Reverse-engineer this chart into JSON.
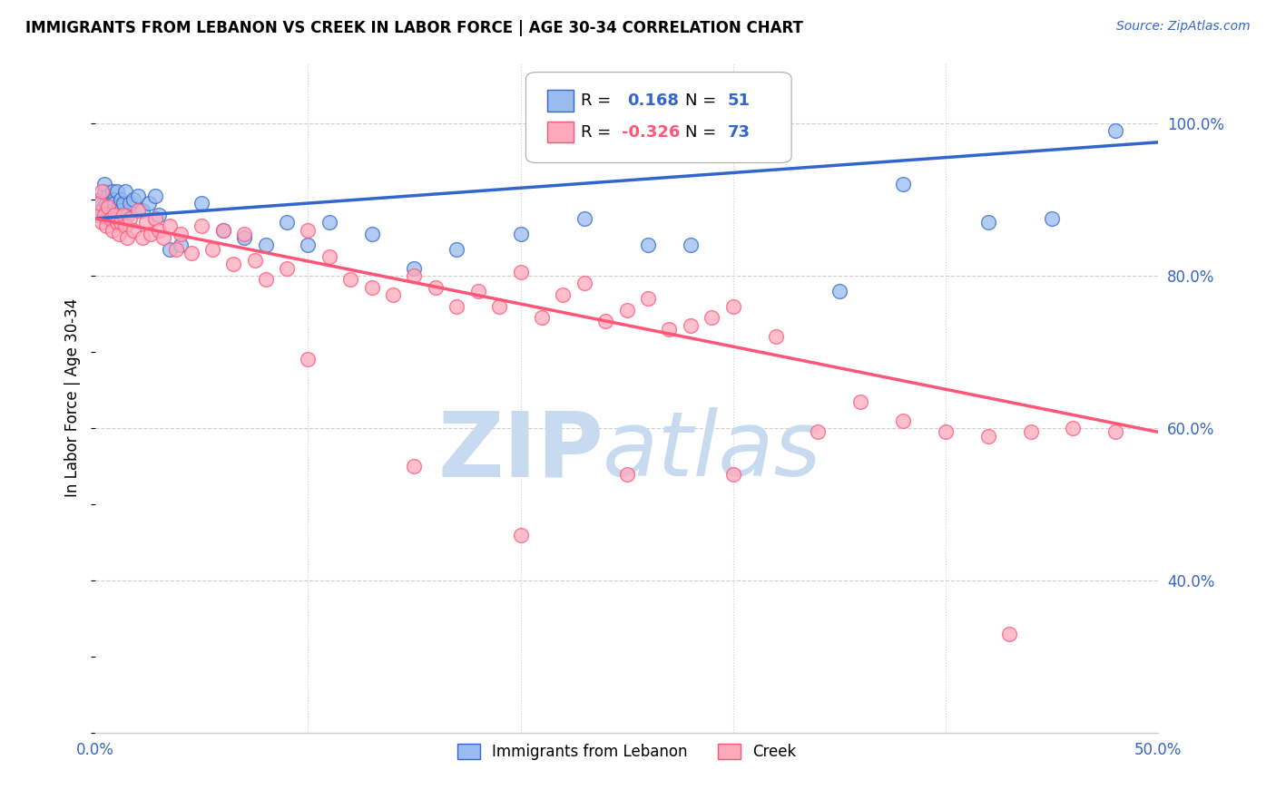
{
  "title": "IMMIGRANTS FROM LEBANON VS CREEK IN LABOR FORCE | AGE 30-34 CORRELATION CHART",
  "source": "Source: ZipAtlas.com",
  "ylabel": "In Labor Force | Age 30-34",
  "xlim": [
    0.0,
    0.5
  ],
  "ylim": [
    0.2,
    1.08
  ],
  "xticks": [
    0.0,
    0.1,
    0.2,
    0.3,
    0.4,
    0.5
  ],
  "xticklabels": [
    "0.0%",
    "",
    "",
    "",
    "",
    "50.0%"
  ],
  "yticks_right": [
    0.4,
    0.6,
    0.8,
    1.0
  ],
  "yticklabels_right": [
    "40.0%",
    "60.0%",
    "80.0%",
    "100.0%"
  ],
  "blue_color": "#99BBEE",
  "pink_color": "#FFAABB",
  "blue_line_color": "#3366CC",
  "pink_line_color": "#FF5577",
  "blue_r": "0.168",
  "blue_n": "51",
  "pink_r": "-0.326",
  "pink_n": "73",
  "blue_trend_x0": 0.0,
  "blue_trend_y0": 0.875,
  "blue_trend_x1": 0.5,
  "blue_trend_y1": 0.975,
  "pink_trend_x0": 0.0,
  "pink_trend_y0": 0.875,
  "pink_trend_x1": 0.5,
  "pink_trend_y1": 0.595,
  "blue_x": [
    0.001,
    0.002,
    0.003,
    0.004,
    0.004,
    0.005,
    0.005,
    0.006,
    0.006,
    0.007,
    0.007,
    0.008,
    0.008,
    0.009,
    0.009,
    0.01,
    0.01,
    0.011,
    0.012,
    0.012,
    0.013,
    0.014,
    0.015,
    0.016,
    0.018,
    0.02,
    0.022,
    0.025,
    0.028,
    0.03,
    0.035,
    0.04,
    0.05,
    0.06,
    0.07,
    0.08,
    0.09,
    0.1,
    0.11,
    0.13,
    0.15,
    0.17,
    0.2,
    0.23,
    0.26,
    0.28,
    0.35,
    0.38,
    0.42,
    0.45,
    0.48
  ],
  "blue_y": [
    0.895,
    0.9,
    0.885,
    0.91,
    0.92,
    0.895,
    0.875,
    0.905,
    0.89,
    0.88,
    0.895,
    0.91,
    0.885,
    0.9,
    0.895,
    0.91,
    0.875,
    0.89,
    0.9,
    0.885,
    0.895,
    0.91,
    0.88,
    0.895,
    0.9,
    0.905,
    0.885,
    0.895,
    0.905,
    0.88,
    0.835,
    0.84,
    0.895,
    0.86,
    0.85,
    0.84,
    0.87,
    0.84,
    0.87,
    0.855,
    0.81,
    0.835,
    0.855,
    0.875,
    0.84,
    0.84,
    0.78,
    0.92,
    0.87,
    0.875,
    0.99
  ],
  "pink_x": [
    0.001,
    0.002,
    0.003,
    0.003,
    0.004,
    0.005,
    0.006,
    0.007,
    0.008,
    0.009,
    0.01,
    0.011,
    0.012,
    0.013,
    0.014,
    0.015,
    0.016,
    0.018,
    0.02,
    0.022,
    0.024,
    0.026,
    0.028,
    0.03,
    0.032,
    0.035,
    0.038,
    0.04,
    0.045,
    0.05,
    0.055,
    0.06,
    0.065,
    0.07,
    0.075,
    0.08,
    0.09,
    0.1,
    0.11,
    0.12,
    0.13,
    0.14,
    0.15,
    0.16,
    0.17,
    0.18,
    0.19,
    0.2,
    0.21,
    0.22,
    0.23,
    0.24,
    0.25,
    0.26,
    0.27,
    0.28,
    0.29,
    0.3,
    0.32,
    0.34,
    0.36,
    0.38,
    0.4,
    0.42,
    0.44,
    0.46,
    0.48,
    0.3,
    0.15,
    0.2,
    0.25,
    0.1,
    0.43
  ],
  "pink_y": [
    0.88,
    0.895,
    0.91,
    0.87,
    0.88,
    0.865,
    0.89,
    0.875,
    0.86,
    0.88,
    0.87,
    0.855,
    0.87,
    0.88,
    0.865,
    0.85,
    0.875,
    0.86,
    0.885,
    0.85,
    0.87,
    0.855,
    0.875,
    0.86,
    0.85,
    0.865,
    0.835,
    0.855,
    0.83,
    0.865,
    0.835,
    0.86,
    0.815,
    0.855,
    0.82,
    0.795,
    0.81,
    0.86,
    0.825,
    0.795,
    0.785,
    0.775,
    0.8,
    0.785,
    0.76,
    0.78,
    0.76,
    0.805,
    0.745,
    0.775,
    0.79,
    0.74,
    0.755,
    0.77,
    0.73,
    0.735,
    0.745,
    0.76,
    0.72,
    0.595,
    0.635,
    0.61,
    0.595,
    0.59,
    0.595,
    0.6,
    0.595,
    0.54,
    0.55,
    0.46,
    0.54,
    0.69,
    0.33
  ]
}
